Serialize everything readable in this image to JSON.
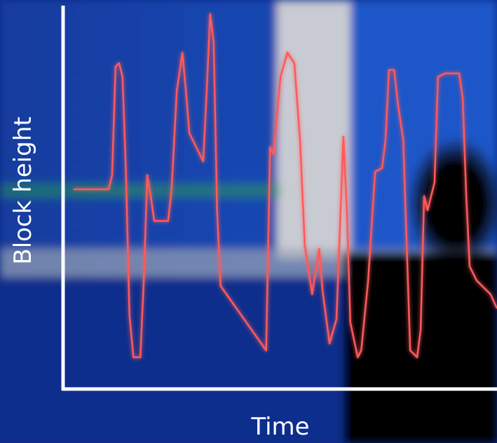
{
  "chart_data": {
    "type": "line",
    "x_label": "Time",
    "y_label": "Block height",
    "x": [
      2.4,
      10.5,
      11.3,
      12.1,
      12.9,
      13.7,
      14.5,
      15.3,
      16.2,
      17.8,
      18.6,
      19.4,
      20.2,
      21,
      24.2,
      25,
      26.2,
      27.5,
      28.3,
      29.1,
      30.7,
      32.3,
      33.1,
      33.9,
      34.7,
      35.5,
      36.3,
      46.8,
      47.7,
      48.5,
      50.1,
      51.7,
      53.3,
      54.6,
      55.7,
      57.4,
      59,
      59.8,
      61.4,
      63,
      64.6,
      65.4,
      66.2,
      67.9,
      68.7,
      70.3,
      71.9,
      73.5,
      74.3,
      75.1,
      76.3,
      77.2,
      78.4,
      79.2,
      80,
      81.6,
      82.4,
      83.2,
      84,
      85.6,
      86.4,
      88,
      91.3,
      92.1,
      92.9,
      93.7,
      95.3,
      98.5,
      100
    ],
    "values": [
      52.3,
      52.3,
      56,
      84.4,
      85.3,
      81.7,
      56,
      19.3,
      8.3,
      8.3,
      28.4,
      56,
      50.5,
      44,
      44,
      52.3,
      78,
      88.1,
      78,
      67,
      63.3,
      59.6,
      78,
      98.2,
      90.8,
      46.8,
      27,
      10.1,
      63.3,
      61.5,
      81.7,
      88.1,
      85.3,
      65.1,
      37.6,
      24.8,
      36.7,
      25.7,
      11.9,
      18.3,
      66.1,
      46.8,
      17.4,
      8.3,
      10.1,
      28.4,
      56.9,
      57.8,
      65.1,
      83.5,
      83.5,
      74.3,
      65.1,
      37.6,
      10.1,
      8.3,
      15.6,
      50.5,
      46.8,
      54.1,
      81.7,
      82.6,
      82.6,
      76.1,
      50.5,
      32.1,
      28.4,
      24.8,
      21.1
    ],
    "color": "#ff5a5a",
    "xlim": [
      0,
      100
    ],
    "ylim": [
      0,
      100
    ]
  }
}
